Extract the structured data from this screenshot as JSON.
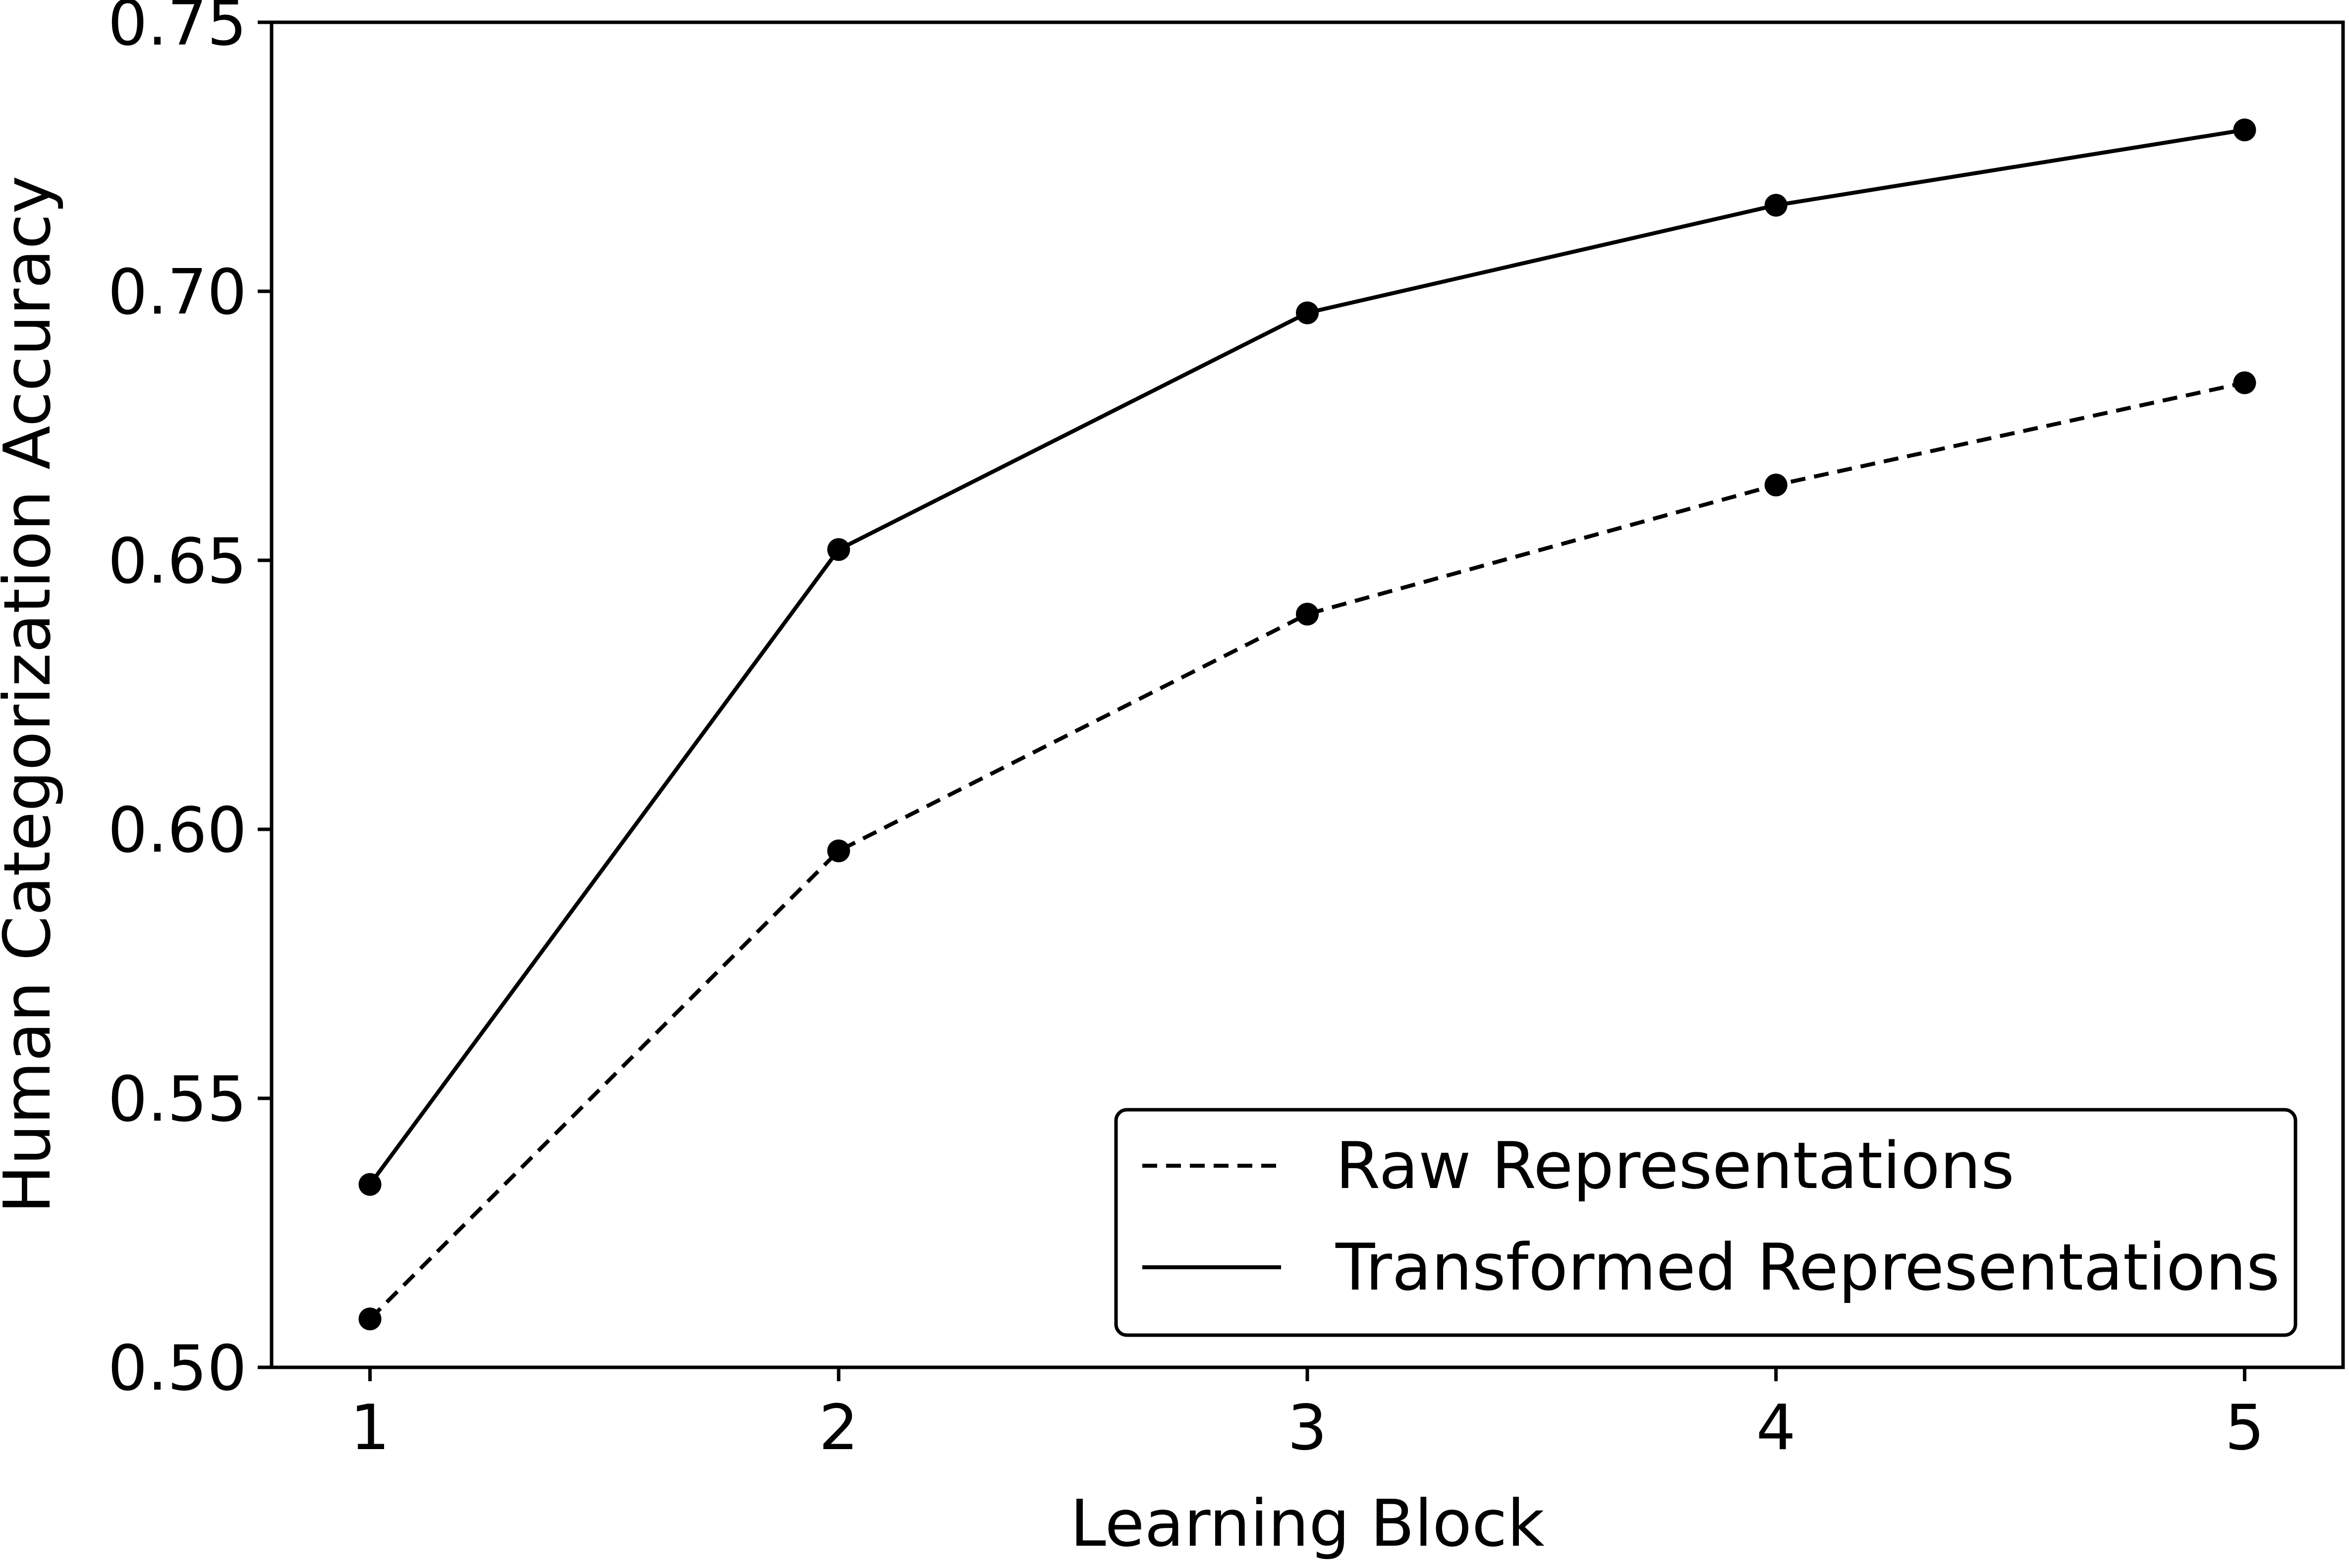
{
  "chart_data": {
    "type": "line",
    "title": "",
    "xlabel": "Learning Block",
    "ylabel": "Human Categorization Accuracy",
    "x": [
      1,
      2,
      3,
      4,
      5
    ],
    "x_tick_labels": [
      "1",
      "2",
      "3",
      "4",
      "5"
    ],
    "xlim": [
      0.79,
      5.21
    ],
    "ylim": [
      0.5,
      0.75
    ],
    "y_ticks": [
      0.5,
      0.55,
      0.6,
      0.65,
      0.7,
      0.75
    ],
    "y_tick_labels": [
      "0.50",
      "0.55",
      "0.60",
      "0.65",
      "0.70",
      "0.75"
    ],
    "grid": false,
    "legend_position": "bottom-right",
    "series": [
      {
        "name": "Raw Representations",
        "line_style": "dashed",
        "marker": "circle",
        "color": "#000000",
        "values": [
          0.509,
          0.596,
          0.64,
          0.664,
          0.683
        ]
      },
      {
        "name": "Transformed Representations",
        "line_style": "solid",
        "marker": "circle",
        "color": "#000000",
        "values": [
          0.534,
          0.652,
          0.696,
          0.716,
          0.73
        ]
      }
    ]
  }
}
